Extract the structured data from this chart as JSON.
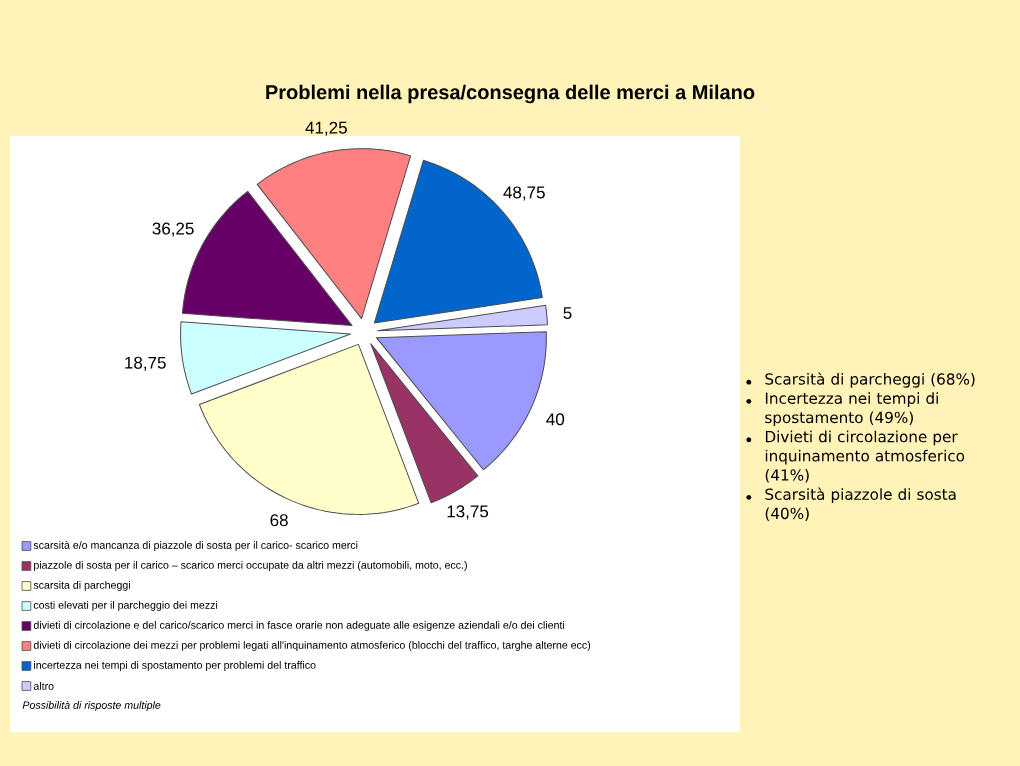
{
  "chart_data": {
    "type": "pie",
    "title": "Problemi nella presa/consegna delle merci a Milano",
    "categories": [
      "scarsità e/o mancanza di piazzole di sosta per il carico- scarico merci",
      "piazzole di sosta per il carico – scarico merci occupate da altri mezzi (automobili, moto, ecc.)",
      "scarsita di parcheggi",
      "costi elevati per il parcheggio dei mezzi",
      "divieti di circolazione e del carico/scarico merci in fasce orarie non adeguate alle esigenze aziendali e/o dei clienti",
      "divieti di circolazione dei mezzi per problemi legati all'inquinamento atmosferico (blocchi del traffico, targhe alterne ecc)",
      "incertezza nei tempi di spostamento per problemi del traffico",
      "altro"
    ],
    "values": [
      40,
      13.75,
      68,
      18.75,
      36.25,
      41.25,
      48.75,
      5
    ],
    "colors": [
      "#9999ff",
      "#993366",
      "#ffffcc",
      "#ccffff",
      "#660066",
      "#ff8080",
      "#0066cc",
      "#ccccff"
    ],
    "data_labels": true,
    "value_labels": [
      "40",
      "13,75",
      "68",
      "18,75",
      "36,25",
      "41,25",
      "48,75",
      "5"
    ],
    "legend": "bottom",
    "annotations": [
      "Possibilità di risposte multiple",
      "Scarsità di parcheggi (68%)",
      "Incertezza nei tempi di spostamento (49%)",
      "Divieti di circolazione per inquinamento atmosferico (41%)",
      "Scarsità piazzole di sosta (40%)"
    ]
  }
}
